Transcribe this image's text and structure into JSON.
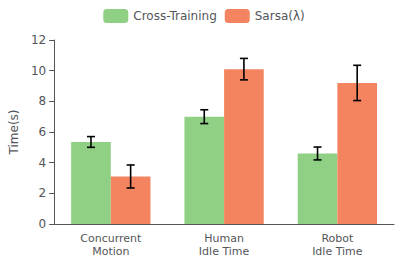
{
  "chart_data": {
    "type": "bar",
    "categories": [
      "Concurrent\nMotion",
      "Human\nIdle Time",
      "Robot\nIdle Time"
    ],
    "series": [
      {
        "name": "Cross-Training",
        "color": "#90D085",
        "values": [
          5.35,
          7.0,
          4.6
        ],
        "errors": [
          0.35,
          0.45,
          0.42
        ]
      },
      {
        "name": "Sarsa(λ)",
        "color": "#F4845F",
        "values": [
          3.1,
          10.1,
          9.2
        ],
        "errors": [
          0.75,
          0.7,
          1.15
        ]
      }
    ],
    "ylabel": "Time(s)",
    "ylim": [
      0,
      12
    ],
    "yticks": [
      0,
      2,
      4,
      6,
      8,
      10,
      12
    ],
    "grid": false,
    "legend": "top"
  }
}
